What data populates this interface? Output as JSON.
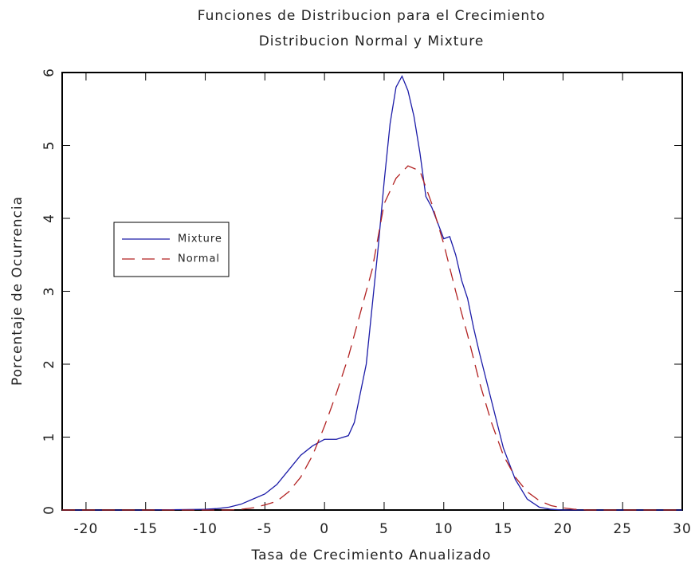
{
  "chart_data": {
    "type": "line",
    "title": "Funciones de Distribucion para el Crecimiento",
    "subtitle": "Distribucion Normal y Mixture",
    "x_label": "Tasa de Crecimiento Anualizado",
    "y_label": "Porcentaje de Ocurrencia",
    "xlim": [
      -22,
      30
    ],
    "ylim": [
      0,
      6
    ],
    "xticks": [
      -20,
      -15,
      -10,
      -5,
      0,
      5,
      10,
      15,
      20,
      25,
      30
    ],
    "yticks": [
      0,
      1,
      2,
      3,
      4,
      5,
      6
    ],
    "legend": "left",
    "series": [
      {
        "name": "Mixture",
        "color": "#1c1ca8",
        "dash": false,
        "x": [
          -22,
          -15,
          -10,
          -9,
          -8,
          -7,
          -6,
          -5,
          -4,
          -3,
          -2,
          -1,
          0,
          1,
          2,
          2.5,
          3,
          3.5,
          4,
          4.5,
          5,
          5.5,
          6,
          6.5,
          7,
          7.5,
          8,
          8.5,
          9,
          10,
          10.5,
          11,
          11.5,
          12,
          12.5,
          13,
          14,
          15,
          16,
          17,
          18,
          19,
          20,
          30
        ],
        "values": [
          0,
          0,
          0.01,
          0.02,
          0.04,
          0.08,
          0.15,
          0.22,
          0.35,
          0.55,
          0.75,
          0.88,
          0.97,
          0.97,
          1.02,
          1.2,
          1.6,
          2.0,
          2.8,
          3.6,
          4.5,
          5.3,
          5.8,
          5.95,
          5.75,
          5.4,
          4.9,
          4.3,
          4.15,
          3.72,
          3.75,
          3.5,
          3.15,
          2.9,
          2.5,
          2.15,
          1.5,
          0.85,
          0.42,
          0.15,
          0.04,
          0.01,
          0,
          0
        ]
      },
      {
        "name": "Normal",
        "color": "#b22222",
        "dash": true,
        "x": [
          -22,
          -8,
          -7,
          -6,
          -5,
          -4,
          -3,
          -2,
          -1,
          0,
          1,
          2,
          3,
          4,
          5,
          6,
          7,
          8,
          9,
          10,
          11,
          12,
          13,
          14,
          15,
          16,
          17,
          18,
          19,
          20,
          21,
          22,
          30
        ],
        "values": [
          0,
          0,
          0.01,
          0.03,
          0.07,
          0.12,
          0.25,
          0.45,
          0.75,
          1.15,
          1.6,
          2.1,
          2.7,
          3.3,
          4.2,
          4.55,
          4.72,
          4.65,
          4.2,
          3.65,
          3.0,
          2.4,
          1.75,
          1.2,
          0.75,
          0.45,
          0.25,
          0.13,
          0.06,
          0.03,
          0.01,
          0,
          0
        ]
      }
    ]
  }
}
